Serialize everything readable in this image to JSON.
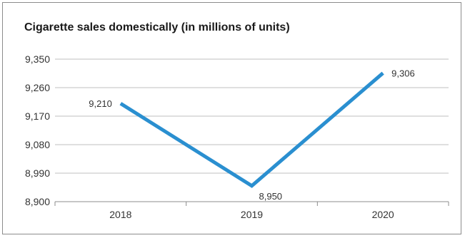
{
  "chart_data": {
    "type": "line",
    "title": "Cigarette sales domestically (in millions of units)",
    "categories": [
      "2018",
      "2019",
      "2020"
    ],
    "series": [
      {
        "values": [
          9210,
          8950,
          9306
        ],
        "color": "#2a8fd0"
      }
    ],
    "data_labels": [
      "9,210",
      "8,950",
      "9,306"
    ],
    "ylim": [
      8900,
      9350
    ],
    "y_ticks": [
      8900,
      8990,
      9080,
      9170,
      9260,
      9350
    ],
    "y_tick_labels": [
      "8,900",
      "8,990",
      "9,080",
      "9,170",
      "9,260",
      "9,350"
    ],
    "grid": true,
    "legend": "none",
    "xlabel": "",
    "ylabel": ""
  }
}
